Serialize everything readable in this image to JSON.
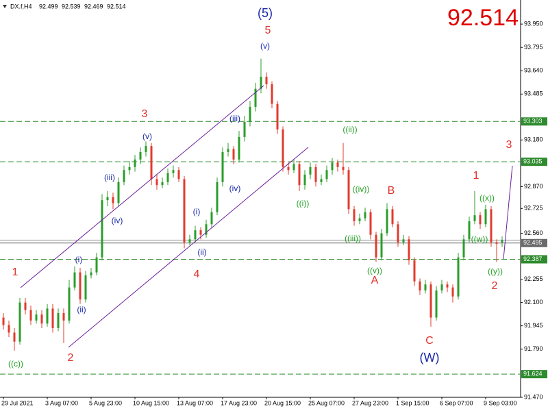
{
  "chart_data": {
    "type": "candlestick",
    "title": "DX.f,H4",
    "categories": [
      "29 Jul 2021",
      null,
      null,
      null,
      null,
      null,
      null,
      null,
      "3 Aug 07:00",
      null,
      null,
      null,
      null,
      null,
      null,
      null,
      "5 Aug 23:00",
      null,
      null,
      null,
      null,
      null,
      null,
      null,
      "10 Aug 15:00",
      null,
      null,
      null,
      null,
      null,
      null,
      null,
      "13 Aug 07:00",
      null,
      null,
      null,
      null,
      null,
      null,
      null,
      "17 Aug 23:00",
      null,
      null,
      null,
      null,
      null,
      null,
      null,
      "20 Aug 15:00",
      null,
      null,
      null,
      null,
      null,
      null,
      null,
      "25 Aug 07:00",
      null,
      null,
      null,
      null,
      null,
      null,
      null,
      "27 Aug 23:00",
      null,
      null,
      null,
      null,
      null,
      null,
      null,
      "1 Sep 15:00",
      null,
      null,
      null,
      null,
      null,
      null,
      null,
      "6 Sep 07:00",
      null,
      null,
      null,
      null,
      null,
      null,
      null,
      "9 Sep 03:00",
      null,
      null,
      null
    ],
    "open": [
      92.0,
      91.95,
      91.9,
      91.84,
      92.1,
      92.05,
      91.98,
      92.02,
      91.96,
      92.06,
      91.93,
      92.03,
      91.98,
      92.2,
      92.3,
      92.12,
      92.28,
      92.3,
      92.4,
      92.78,
      92.8,
      92.76,
      92.9,
      92.98,
      93.0,
      93.05,
      93.1,
      93.14,
      92.92,
      92.88,
      92.9,
      92.96,
      92.98,
      92.92,
      92.5,
      92.52,
      92.58,
      92.55,
      92.62,
      92.7,
      92.9,
      93.1,
      93.12,
      93.05,
      93.2,
      93.3,
      93.4,
      93.52,
      93.6,
      93.55,
      93.42,
      93.25,
      93.0,
      92.98,
      93.02,
      92.88,
      92.95,
      93.0,
      92.9,
      92.92,
      92.98,
      93.03,
      93.0,
      92.98,
      92.72,
      92.64,
      92.66,
      92.7,
      92.55,
      92.4,
      92.56,
      92.72,
      92.62,
      92.5,
      92.52,
      92.38,
      92.24,
      92.18,
      92.22,
      92.0,
      92.18,
      92.22,
      92.2,
      92.14,
      92.4,
      92.52,
      92.64,
      92.68,
      92.62,
      92.72,
      92.5,
      92.499
    ],
    "high": [
      92.03,
      91.98,
      91.93,
      92.13,
      92.13,
      92.08,
      92.05,
      92.05,
      92.09,
      92.09,
      92.06,
      92.06,
      92.25,
      92.34,
      92.33,
      92.31,
      92.33,
      92.43,
      92.82,
      92.84,
      92.83,
      92.93,
      93.01,
      93.04,
      93.08,
      93.13,
      93.17,
      93.16,
      92.95,
      92.93,
      92.99,
      93.01,
      93.0,
      92.94,
      92.55,
      92.61,
      92.6,
      92.65,
      92.73,
      92.93,
      93.13,
      93.16,
      93.14,
      93.24,
      93.34,
      93.44,
      93.56,
      93.72,
      93.63,
      93.57,
      93.44,
      93.27,
      93.03,
      93.05,
      93.04,
      92.98,
      93.03,
      93.02,
      92.95,
      93.01,
      93.06,
      93.05,
      93.16,
      93.0,
      92.74,
      92.69,
      92.73,
      92.72,
      92.57,
      92.59,
      92.76,
      92.74,
      92.64,
      92.55,
      92.54,
      92.4,
      92.26,
      92.25,
      92.24,
      92.21,
      92.25,
      92.24,
      92.22,
      92.43,
      92.55,
      92.67,
      92.84,
      92.7,
      92.75,
      92.74,
      92.52,
      92.539
    ],
    "low": [
      91.92,
      91.87,
      91.78,
      91.82,
      92.02,
      91.95,
      91.96,
      91.93,
      91.94,
      91.9,
      91.91,
      91.83,
      91.96,
      92.18,
      92.09,
      92.1,
      92.26,
      92.28,
      92.38,
      92.74,
      92.72,
      92.74,
      92.88,
      92.95,
      92.97,
      93.02,
      93.07,
      92.88,
      92.85,
      92.86,
      92.88,
      92.93,
      92.9,
      92.46,
      92.48,
      92.5,
      92.52,
      92.53,
      92.6,
      92.68,
      92.87,
      93.07,
      93.02,
      93.03,
      93.17,
      93.27,
      93.37,
      93.49,
      93.52,
      93.39,
      93.22,
      92.97,
      92.95,
      92.96,
      92.84,
      92.85,
      92.92,
      92.87,
      92.88,
      92.9,
      92.95,
      92.97,
      92.95,
      92.69,
      92.61,
      92.62,
      92.64,
      92.52,
      92.37,
      92.38,
      92.54,
      92.6,
      92.47,
      92.48,
      92.35,
      92.21,
      92.15,
      92.16,
      91.94,
      91.98,
      92.16,
      92.17,
      92.1,
      92.12,
      92.38,
      92.5,
      92.62,
      92.59,
      92.6,
      92.47,
      92.37,
      92.469
    ],
    "close": [
      91.95,
      91.9,
      91.84,
      92.1,
      92.05,
      91.98,
      92.02,
      91.96,
      92.06,
      91.93,
      92.03,
      91.98,
      92.2,
      92.3,
      92.12,
      92.28,
      92.3,
      92.4,
      92.78,
      92.8,
      92.76,
      92.9,
      92.98,
      93.0,
      93.05,
      93.1,
      93.14,
      92.92,
      92.88,
      92.9,
      92.96,
      92.98,
      92.92,
      92.5,
      92.52,
      92.58,
      92.55,
      92.62,
      92.7,
      92.9,
      93.1,
      93.12,
      93.05,
      93.2,
      93.3,
      93.4,
      93.52,
      93.6,
      93.55,
      93.42,
      93.25,
      93.0,
      92.98,
      93.02,
      92.88,
      92.95,
      93.0,
      92.9,
      92.92,
      92.98,
      93.03,
      93.0,
      92.98,
      92.72,
      92.64,
      92.66,
      92.7,
      92.55,
      92.4,
      92.56,
      92.72,
      92.62,
      92.5,
      92.52,
      92.38,
      92.24,
      92.18,
      92.22,
      92.0,
      92.18,
      92.22,
      92.2,
      92.14,
      92.4,
      92.52,
      92.64,
      92.68,
      92.62,
      92.72,
      92.5,
      92.49,
      92.514
    ],
    "up_color": "#2a9d2a",
    "down_color": "#e03b2e",
    "ylim": [
      91.47,
      94.11
    ],
    "yticks": [
      {
        "value": 93.95,
        "label": "93.950"
      },
      93.795,
      {
        "value": 93.64,
        "label": "93.640"
      },
      93.485,
      {
        "value": 93.18,
        "label": "93.180"
      },
      {
        "value": 92.87,
        "label": "92.870"
      },
      92.725,
      {
        "value": 92.56,
        "label": "92.560"
      },
      92.255,
      {
        "value": 92.1,
        "label": "92.100"
      },
      91.945,
      {
        "value": 91.79,
        "label": "91.790"
      },
      {
        "value": 91.47,
        "label": "91.470"
      }
    ],
    "levels": [
      {
        "value": 93.303,
        "color": "#2e8b2e",
        "style": "dashed"
      },
      {
        "value": 93.035,
        "color": "#2e8b2e",
        "style": "dashed"
      },
      {
        "value": 92.495,
        "color": "#6b6b6b",
        "style": "solid"
      },
      {
        "value": 92.387,
        "color": "#2e8b2e",
        "style": "dashed"
      },
      {
        "value": 91.624,
        "color": "#2e8b2e",
        "style": "dashed"
      }
    ],
    "price_color": "#e00000",
    "annotations": [
      {
        "text": "1",
        "color": "#e0302a"
      },
      {
        "text": "2",
        "color": "#e0302a"
      },
      {
        "text": "3",
        "color": "#e0302a"
      },
      {
        "text": "4",
        "color": "#e0302a"
      },
      {
        "text": "5",
        "color": "#e0302a"
      },
      {
        "text": "A",
        "color": "#e0302a"
      },
      {
        "text": "B",
        "color": "#e0302a"
      },
      {
        "text": "C",
        "color": "#e0302a"
      },
      {
        "text": "1",
        "color": "#e0302a"
      },
      {
        "text": "2",
        "color": "#e0302a"
      },
      {
        "text": "3",
        "color": "#e0302a"
      },
      {
        "text": "(5)",
        "color": "#1a28a8"
      },
      {
        "text": "(W)",
        "color": "#1a28a8"
      },
      {
        "text": "(v)",
        "color": "#1a28a8"
      },
      {
        "text": "(v)",
        "color": "#1a28a8"
      },
      {
        "text": "(iii)",
        "color": "#1a28a8"
      },
      {
        "text": "(iv)",
        "color": "#1a28a8"
      },
      {
        "text": "(i)",
        "color": "#1a28a8"
      },
      {
        "text": "(ii)",
        "color": "#1a28a8"
      },
      {
        "text": "(iii)",
        "color": "#1a28a8"
      },
      {
        "text": "(iv)",
        "color": "#1a28a8"
      },
      {
        "text": "(i)",
        "color": "#1a28a8"
      },
      {
        "text": "(ii)",
        "color": "#1a28a8"
      },
      {
        "text": "((c))",
        "color": "#23a023"
      },
      {
        "text": "((ii))",
        "color": "#23a023"
      },
      {
        "text": "((iv))",
        "color": "#23a023"
      },
      {
        "text": "((i))",
        "color": "#23a023"
      },
      {
        "text": "((iii))",
        "color": "#23a023"
      },
      {
        "text": "((v))",
        "color": "#23a023"
      },
      {
        "text": "((x))",
        "color": "#23a023"
      },
      {
        "text": "((w))",
        "color": "#23a023"
      },
      {
        "text": "((y))",
        "color": "#23a023"
      }
    ]
  }
}
